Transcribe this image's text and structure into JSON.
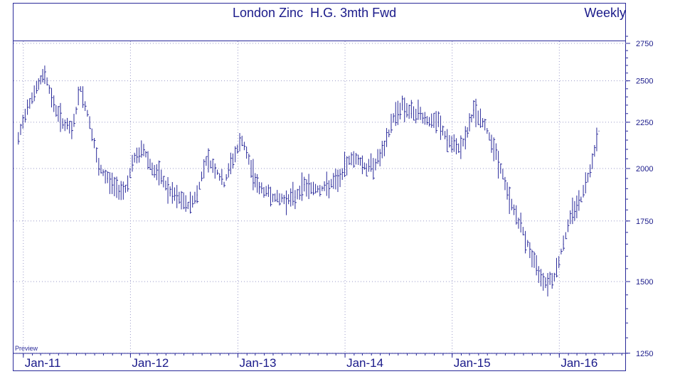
{
  "header": {
    "title": "London Zinc  H.G. 3mth Fwd",
    "period": "Weekly",
    "preview_label": "Preview"
  },
  "colors": {
    "line": "#2a2a9a",
    "text": "#1a1a8a",
    "grid": "#9a9ac8"
  },
  "chart_data": {
    "type": "line",
    "title": "London Zinc  H.G. 3mth Fwd",
    "subtitle": "Weekly",
    "xlabel": "",
    "ylabel": "",
    "y_axis_side": "right",
    "y_scale": "log",
    "ylim": [
      1250,
      2800
    ],
    "y_ticks": [
      1250,
      1500,
      1750,
      2000,
      2250,
      2500,
      2750
    ],
    "x_ticks": [
      "Jan-11",
      "Jan-12",
      "Jan-13",
      "Jan-14",
      "Jan-15",
      "Jan-16"
    ],
    "grid": "dotted",
    "series": [
      {
        "name": "",
        "x": [
          "2010-12",
          "2011-01",
          "2011-02",
          "2011-03",
          "2011-04",
          "2011-05",
          "2011-06",
          "2011-07",
          "2011-08",
          "2011-09",
          "2011-10",
          "2011-11",
          "2011-12",
          "2012-01",
          "2012-02",
          "2012-03",
          "2012-04",
          "2012-05",
          "2012-06",
          "2012-07",
          "2012-08",
          "2012-09",
          "2012-10",
          "2012-11",
          "2012-12",
          "2013-01",
          "2013-02",
          "2013-03",
          "2013-04",
          "2013-05",
          "2013-06",
          "2013-07",
          "2013-08",
          "2013-09",
          "2013-10",
          "2013-11",
          "2013-12",
          "2014-01",
          "2014-02",
          "2014-03",
          "2014-04",
          "2014-05",
          "2014-06",
          "2014-07",
          "2014-08",
          "2014-09",
          "2014-10",
          "2014-11",
          "2014-12",
          "2015-01",
          "2015-02",
          "2015-03",
          "2015-04",
          "2015-05",
          "2015-06",
          "2015-07",
          "2015-08",
          "2015-09",
          "2015-10",
          "2015-11",
          "2015-12",
          "2016-01",
          "2016-02",
          "2016-03",
          "2016-04",
          "2016-05"
        ],
        "values": [
          2150,
          2350,
          2450,
          2550,
          2350,
          2250,
          2200,
          2450,
          2250,
          2000,
          1950,
          1900,
          1900,
          2050,
          2100,
          2000,
          1950,
          1880,
          1850,
          1820,
          1870,
          2050,
          2000,
          1920,
          2050,
          2150,
          2000,
          1900,
          1880,
          1850,
          1850,
          1860,
          1920,
          1900,
          1900,
          1920,
          1950,
          2050,
          2050,
          2000,
          2030,
          2100,
          2280,
          2350,
          2300,
          2300,
          2250,
          2250,
          2150,
          2100,
          2150,
          2320,
          2250,
          2150,
          2000,
          1850,
          1750,
          1650,
          1550,
          1500,
          1520,
          1650,
          1800,
          1850,
          2000,
          2200
        ]
      }
    ]
  }
}
